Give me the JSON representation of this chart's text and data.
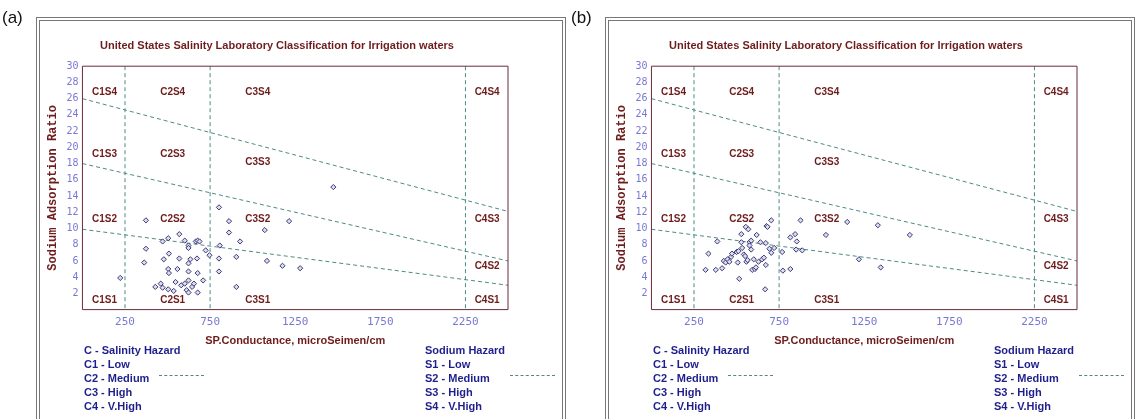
{
  "chart_data": [
    {
      "type": "scatter",
      "title": "United States Salinity Laboratory Classification for Irrigation waters",
      "xlabel": "SP.Conductance, microSeimen/cm",
      "ylabel": "Sodium Adsorption Ratio",
      "xlim": [
        0,
        2500
      ],
      "xticks": [
        {
          "value": 250,
          "label": "250"
        },
        {
          "value": 750,
          "label": "750"
        },
        {
          "value": 1250,
          "label": "1250"
        },
        {
          "value": 1750,
          "label": "1750"
        },
        {
          "value": 2250,
          "label": "2250"
        }
      ],
      "ylim": [
        0,
        30
      ],
      "yticks": [
        2,
        4,
        6,
        8,
        10,
        12,
        14,
        16,
        18,
        20,
        22,
        24,
        26,
        28,
        30
      ],
      "grid": false,
      "legend": false,
      "marker": "diamond",
      "series": [
        {
          "color": "#3b3b78",
          "x": [
            373,
            222,
            373,
            363,
            471,
            504,
            569,
            601,
            623,
            666,
            677,
            688,
            623,
            508,
            478,
            569,
            673,
            724,
            746,
            807,
            802,
            802,
            904,
            926,
            861,
            861,
            802,
            1071,
            1214,
            1084,
            1175,
            1279,
            904,
            504,
            558,
            623,
            623,
            508,
            677,
            428,
            460,
            471,
            504,
            536,
            547,
            580,
            601,
            612,
            623,
            623,
            644,
            655,
            677,
            709,
            634,
            1474
          ],
          "values": [
            11.0,
            3.9,
            7.5,
            5.8,
            8.4,
            8.8,
            9.3,
            8.5,
            7.9,
            8.4,
            8.5,
            8.4,
            7.6,
            6.9,
            6.2,
            6.3,
            6.3,
            7.3,
            6.7,
            7.9,
            6.3,
            4.7,
            6.5,
            8.4,
            9.5,
            10.9,
            12.6,
            9.8,
            10.9,
            6.0,
            5.4,
            5.1,
            2.8,
            5.0,
            5.0,
            5.7,
            4.7,
            4.5,
            4.5,
            2.8,
            3.2,
            2.7,
            2.5,
            2.3,
            3.4,
            3.0,
            3.2,
            2.4,
            2.1,
            3.6,
            2.8,
            3.2,
            2.1,
            3.6,
            6.2,
            15.1
          ]
        },
        {
          "type": "line",
          "color": "#4f8a84",
          "line_style": "dashed",
          "marker": "none",
          "x": [
            0,
            2500
          ],
          "values": [
            26,
            12.1
          ]
        },
        {
          "type": "line",
          "color": "#4f8a84",
          "line_style": "dashed",
          "marker": "none",
          "x": [
            0,
            2500
          ],
          "values": [
            18,
            6
          ]
        },
        {
          "type": "line",
          "color": "#4f8a84",
          "line_style": "dashed",
          "marker": "none",
          "x": [
            0,
            2500
          ],
          "values": [
            9.9,
            3.0
          ]
        }
      ],
      "ref_lines": [
        {
          "axis": "x",
          "value": 250,
          "color": "#4f8a84",
          "line_style": "dashed"
        },
        {
          "axis": "x",
          "value": 750,
          "color": "#4f8a84",
          "line_style": "dashed"
        },
        {
          "axis": "x",
          "value": 2250,
          "color": "#4f8a84",
          "line_style": "dashed"
        }
      ],
      "annotations": [
        "(a)",
        "C - Salinity Hazard",
        "C1 - Low",
        "C2 - Medium",
        "C3 - High",
        "C4 - V.High",
        "Sodium Hazard",
        "S1 - Low",
        "S2 - Medium",
        "S3 - High",
        "S4 - V.High",
        "C1S4",
        "C2S4",
        "C3S4",
        "C4S4",
        "C1S3",
        "C2S3",
        "C3S3",
        "C4S3",
        "C1S2",
        "C2S2",
        "C3S2",
        "C4S2",
        "C1S1",
        "C2S1",
        "C3S1",
        "C4S1"
      ]
    },
    {
      "type": "scatter",
      "title": "United States Salinity Laboratory Classification for Irrigation waters",
      "xlabel": "SP.Conductance, microSeimen/cm",
      "ylabel": "Sodium Adsorption Ratio",
      "xlim": [
        0,
        2500
      ],
      "xticks": [
        {
          "value": 250,
          "label": "250"
        },
        {
          "value": 750,
          "label": "750"
        },
        {
          "value": 1250,
          "label": "1250"
        },
        {
          "value": 1750,
          "label": "1750"
        },
        {
          "value": 2250,
          "label": "2250"
        }
      ],
      "ylim": [
        0,
        30
      ],
      "yticks": [
        2,
        4,
        6,
        8,
        10,
        12,
        14,
        16,
        18,
        20,
        22,
        24,
        26,
        28,
        30
      ],
      "grid": false,
      "legend": false,
      "marker": "diamond",
      "series": [
        {
          "color": "#3b3b78",
          "x": [
            318,
            378,
            415,
            335,
            387,
            425,
            436,
            447,
            458,
            468,
            473,
            500,
            507,
            511,
            528,
            528,
            543,
            550,
            554,
            558,
            565,
            569,
            576,
            586,
            586,
            592,
            608,
            614,
            601,
            618,
            629,
            640,
            650,
            661,
            672,
            676,
            682,
            693,
            704,
            704,
            672,
            721,
            768,
            772,
            816,
            816,
            844,
            854,
            850,
            886,
            876,
            668,
            516,
            1025,
            1150,
            1219,
            1330,
            1347,
            1518,
            576,
            533
          ],
          "values": [
            4.9,
            4.9,
            5.1,
            6.9,
            8.4,
            6.0,
            5.8,
            6.2,
            5.9,
            6.5,
            6.9,
            7.1,
            5.8,
            7.2,
            9.3,
            8.3,
            6.8,
            6.6,
            10.2,
            5.9,
            6.1,
            9.9,
            8.3,
            8.5,
            7.4,
            4.9,
            5.0,
            5.2,
            6.2,
            9.2,
            5.9,
            8.3,
            6.2,
            6.4,
            5.5,
            10.3,
            10.2,
            7.5,
            7.0,
            11.0,
            8.2,
            7.6,
            7.1,
            4.8,
            5.0,
            8.9,
            9.3,
            8.4,
            7.4,
            7.3,
            11.0,
            2.5,
            3.8,
            9.2,
            10.8,
            6.2,
            10.4,
            5.2,
            9.2,
            7.9,
            7.6
          ]
        },
        {
          "type": "line",
          "color": "#4f8a84",
          "line_style": "dashed",
          "marker": "none",
          "x": [
            0,
            2500
          ],
          "values": [
            26,
            12.1
          ]
        },
        {
          "type": "line",
          "color": "#4f8a84",
          "line_style": "dashed",
          "marker": "none",
          "x": [
            0,
            2500
          ],
          "values": [
            18,
            6
          ]
        },
        {
          "type": "line",
          "color": "#4f8a84",
          "line_style": "dashed",
          "marker": "none",
          "x": [
            0,
            2500
          ],
          "values": [
            9.9,
            3.0
          ]
        }
      ],
      "ref_lines": [
        {
          "axis": "x",
          "value": 250,
          "color": "#4f8a84",
          "line_style": "dashed"
        },
        {
          "axis": "x",
          "value": 750,
          "color": "#4f8a84",
          "line_style": "dashed"
        },
        {
          "axis": "x",
          "value": 2250,
          "color": "#4f8a84",
          "line_style": "dashed"
        }
      ],
      "annotations": [
        "(b)",
        "C - Salinity Hazard",
        "C1 - Low",
        "C2 - Medium",
        "C3 - High",
        "C4 - V.High",
        "Sodium Hazard",
        "S1 - Low",
        "S2 - Medium",
        "S3 - High",
        "S4 - V.High",
        "C1S4",
        "C2S4",
        "C3S4",
        "C4S4",
        "C1S3",
        "C2S3",
        "C3S3",
        "C4S3",
        "C1S2",
        "C2S2",
        "C3S2",
        "C4S2",
        "C1S1",
        "C2S1",
        "C3S1",
        "C4S1"
      ]
    }
  ]
}
